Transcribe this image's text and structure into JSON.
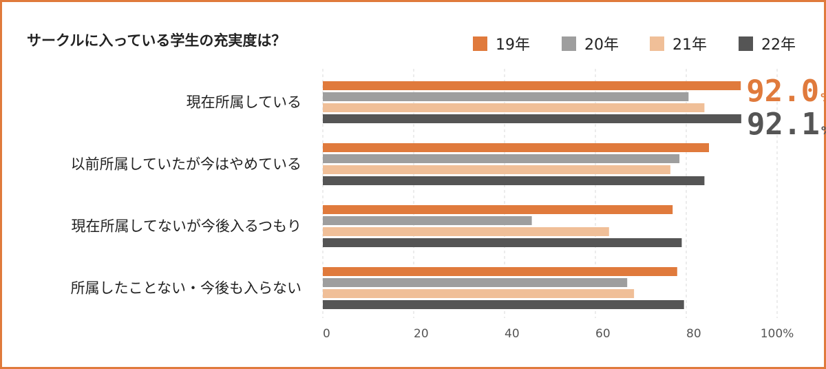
{
  "title": "サークルに入っている学生の充実度は？",
  "colors": {
    "frame": "#e07a3c",
    "grid": "#d9d9d9"
  },
  "chart_data": {
    "type": "bar",
    "orientation": "horizontal",
    "title": "サークルに入っている学生の充実度は？",
    "categories": [
      "現在所属している",
      "以前所属していたが今はやめている",
      "現在所属してないが今後入るつもり",
      "所属したことない・今後も入らない"
    ],
    "series": [
      {
        "name": "19年",
        "color": "#e07a3c",
        "values": [
          92.0,
          85,
          77,
          78
        ]
      },
      {
        "name": "20年",
        "color": "#9e9e9e",
        "values": [
          80.5,
          78.5,
          46,
          67
        ]
      },
      {
        "name": "21年",
        "color": "#f0bf98",
        "values": [
          84,
          76.5,
          63,
          68.5
        ]
      },
      {
        "name": "22年",
        "color": "#555555",
        "values": [
          92.1,
          84,
          79,
          79.5
        ]
      }
    ],
    "xlim": [
      0,
      100
    ],
    "x_ticks": [
      "0",
      "20",
      "40",
      "60",
      "80",
      "100%"
    ],
    "grid": true,
    "legend_position": "top-right",
    "annotations": [
      {
        "series": 0,
        "category": 0,
        "value": "92.0",
        "unit": "%",
        "color": "#e07a3c"
      },
      {
        "series": 3,
        "category": 0,
        "value": "92.1",
        "unit": "%",
        "color": "#555555"
      }
    ]
  }
}
